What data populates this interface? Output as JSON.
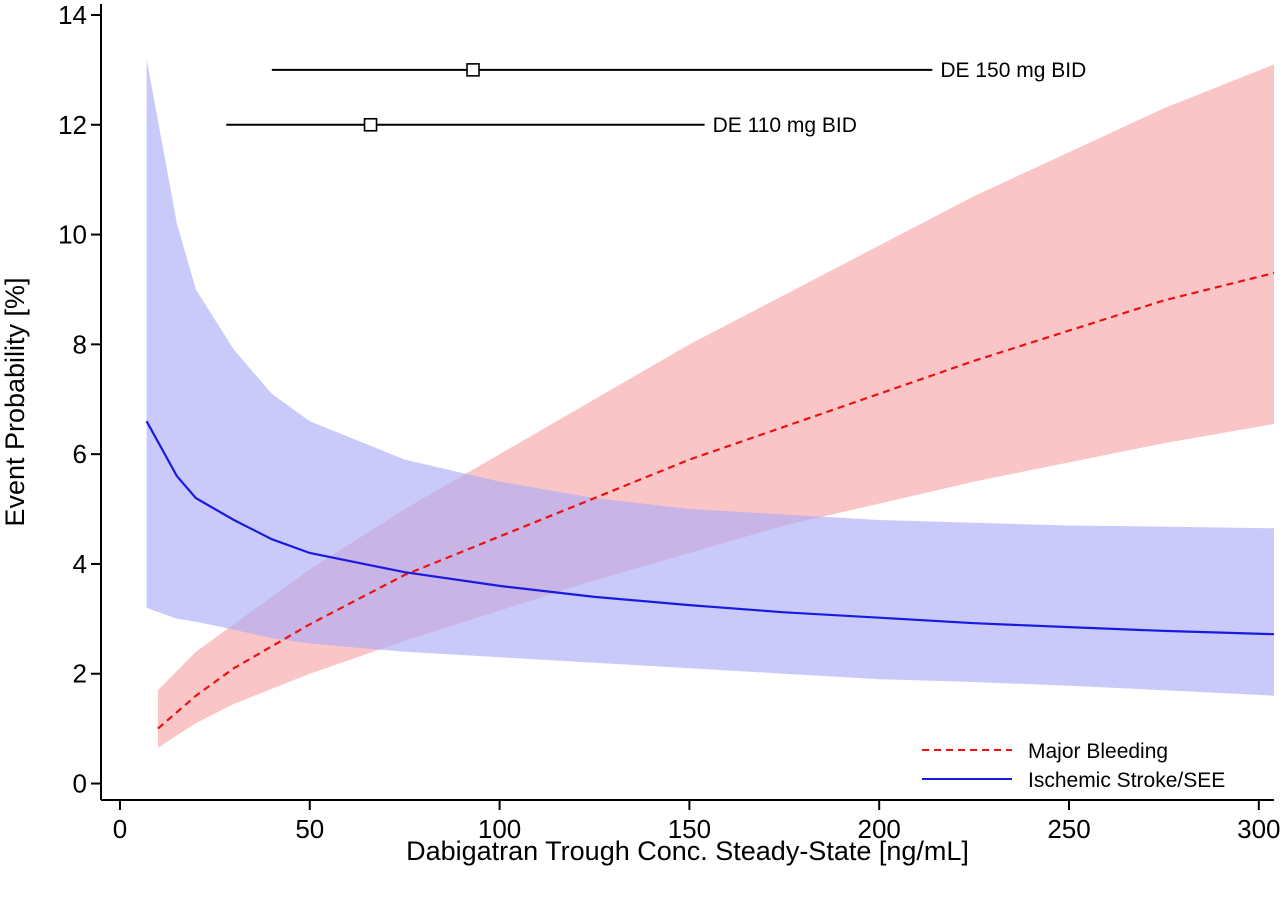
{
  "chart_data": {
    "type": "line",
    "xlabel": "Dabigatran Trough Conc. Steady-State [ng/mL]",
    "ylabel": "Event Probability [%]",
    "xlim": [
      -5,
      304
    ],
    "ylim": [
      -0.3,
      14.2
    ],
    "xticks": [
      0,
      50,
      100,
      150,
      200,
      250,
      300
    ],
    "yticks": [
      0,
      2,
      4,
      6,
      8,
      10,
      12,
      14
    ],
    "grid": false,
    "legend_position": "bottom-right",
    "series": [
      {
        "name": "Major Bleeding",
        "style": "dashed",
        "color": "#ee1111",
        "band_color": "#f6a1a5",
        "x": [
          10,
          20,
          30,
          50,
          75,
          100,
          125,
          150,
          175,
          200,
          225,
          250,
          275,
          304
        ],
        "y": [
          1.0,
          1.6,
          2.1,
          2.9,
          3.8,
          4.5,
          5.2,
          5.9,
          6.5,
          7.1,
          7.7,
          8.25,
          8.8,
          9.3
        ],
        "lower": [
          0.65,
          1.1,
          1.45,
          2.0,
          2.6,
          3.15,
          3.7,
          4.2,
          4.7,
          5.1,
          5.5,
          5.85,
          6.2,
          6.55
        ],
        "upper": [
          1.7,
          2.4,
          2.9,
          3.9,
          5.0,
          6.0,
          7.0,
          8.0,
          8.9,
          9.8,
          10.7,
          11.5,
          12.3,
          13.1
        ]
      },
      {
        "name": "Ischemic Stroke/SEE",
        "style": "solid",
        "color": "#1a1adf",
        "band_color": "#a9a9f7",
        "x": [
          7,
          15,
          20,
          30,
          40,
          50,
          75,
          100,
          125,
          150,
          175,
          200,
          225,
          250,
          275,
          304
        ],
        "y": [
          6.6,
          5.6,
          5.2,
          4.8,
          4.45,
          4.2,
          3.85,
          3.6,
          3.4,
          3.25,
          3.12,
          3.02,
          2.92,
          2.85,
          2.78,
          2.72
        ],
        "lower": [
          3.2,
          3.0,
          2.95,
          2.8,
          2.65,
          2.55,
          2.4,
          2.3,
          2.2,
          2.1,
          2.0,
          1.9,
          1.85,
          1.78,
          1.7,
          1.6
        ],
        "upper": [
          13.2,
          10.2,
          9.0,
          7.9,
          7.1,
          6.6,
          5.9,
          5.5,
          5.2,
          5.0,
          4.9,
          4.8,
          4.75,
          4.7,
          4.68,
          4.65
        ]
      }
    ],
    "annotations": [
      {
        "label": "DE 150 mg BID",
        "median": 93,
        "low": 40,
        "high": 214,
        "y": 13
      },
      {
        "label": "DE 110 mg BID",
        "median": 66,
        "low": 28,
        "high": 154,
        "y": 12
      }
    ]
  }
}
